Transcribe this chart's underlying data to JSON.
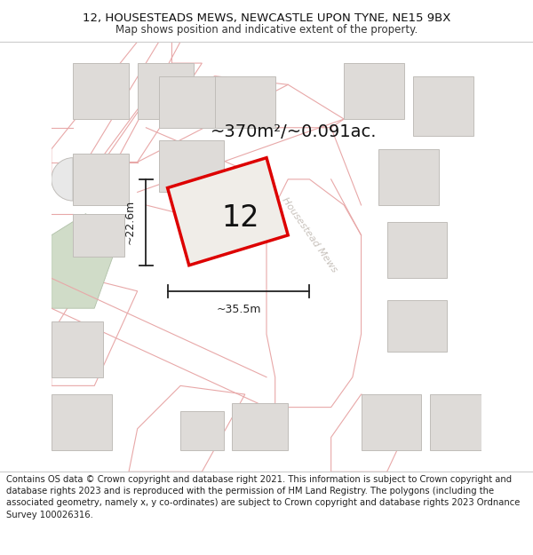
{
  "title_line1": "12, HOUSESTEADS MEWS, NEWCASTLE UPON TYNE, NE15 9BX",
  "title_line2": "Map shows position and indicative extent of the property.",
  "title_fontsize": 9.5,
  "subtitle_fontsize": 8.5,
  "bg_color": "#ffffff",
  "map_bg": "#f8f8f8",
  "road_outline_color": "#e8a8a8",
  "road_fill": "#ffffff",
  "building_fill": "#dedbd8",
  "building_border": "#c0bdb9",
  "highlight_fill": "#f0ede8",
  "highlight_border": "#dd0000",
  "green_fill": "#d0dcc8",
  "green_border": "#b0c0a8",
  "road_label": "Housestead Mews",
  "road_label_color": "#c8c2bc",
  "road_label_fontsize": 8,
  "number_label": "12",
  "number_fontsize": 24,
  "area_label": "~370m²/~0.091ac.",
  "area_fontsize": 14,
  "width_label": "~35.5m",
  "height_label": "~22.6m",
  "dim_fontsize": 9,
  "dim_color": "#222222",
  "footer_text": "Contains OS data © Crown copyright and database right 2021. This information is subject to Crown copyright and database rights 2023 and is reproduced with the permission of HM Land Registry. The polygons (including the associated geometry, namely x, y co-ordinates) are subject to Crown copyright and database rights 2023 Ordnance Survey 100026316.",
  "footer_fontsize": 7.2,
  "separator_color": "#cccccc"
}
